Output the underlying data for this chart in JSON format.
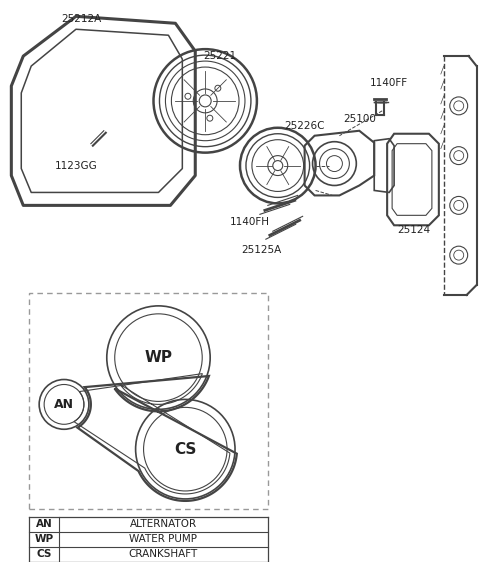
{
  "bg_color": "#ffffff",
  "line_color": "#444444",
  "label_color": "#222222",
  "fig_width": 4.8,
  "fig_height": 5.63,
  "dpi": 100,
  "legend_rows": [
    [
      "AN",
      "ALTERNATOR"
    ],
    [
      "WP",
      "WATER PUMP"
    ],
    [
      "CS",
      "CRANKSHAFT"
    ]
  ]
}
